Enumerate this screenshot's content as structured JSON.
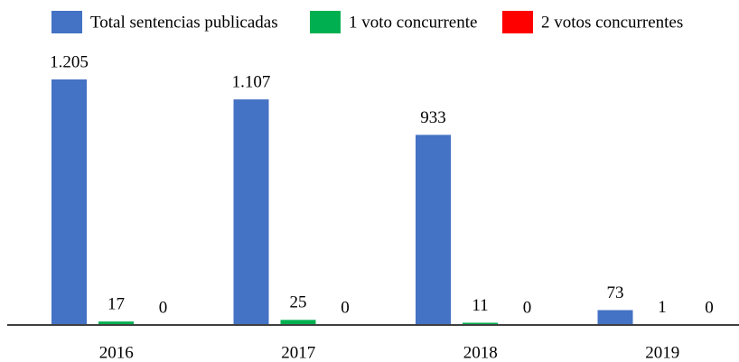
{
  "chart_data": {
    "type": "bar",
    "categories": [
      "2016",
      "2017",
      "2018",
      "2019"
    ],
    "series": [
      {
        "name": "Total sentencias publicadas",
        "color": "#4472c4",
        "values": [
          1205,
          1107,
          933,
          73
        ],
        "value_labels": [
          "1.205",
          "1.107",
          "933",
          "73"
        ]
      },
      {
        "name": "1 voto concurrente",
        "color": "#00b050",
        "values": [
          17,
          25,
          11,
          1
        ]
      },
      {
        "name": "2 votos concurrentes",
        "color": "#ff0000",
        "values": [
          0,
          0,
          0,
          0
        ]
      }
    ],
    "legend": "top"
  }
}
